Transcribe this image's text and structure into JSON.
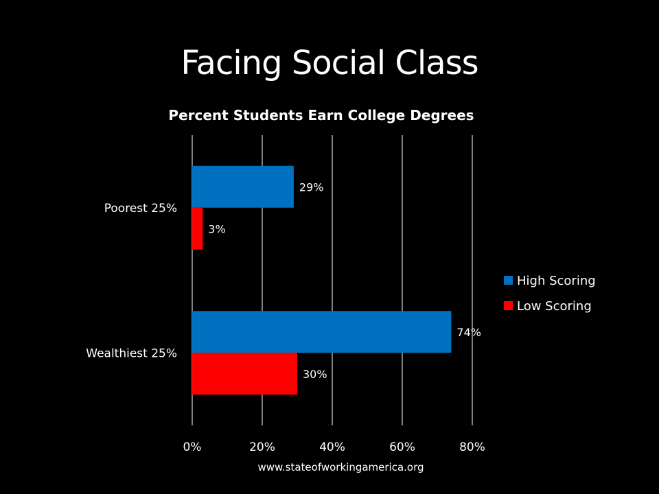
{
  "slide": {
    "title": "Facing Social Class",
    "source": "www.stateofworkingamerica.org"
  },
  "chart_data": {
    "type": "bar",
    "orientation": "horizontal",
    "title": "Percent Students Earn College Degrees",
    "categories": [
      "Poorest 25%",
      "Wealthiest 25%"
    ],
    "series": [
      {
        "name": "High Scoring",
        "values": [
          29,
          74
        ],
        "labels": [
          "29%",
          "74%"
        ],
        "color": "#0070C0"
      },
      {
        "name": "Low Scoring",
        "values": [
          3,
          30
        ],
        "labels": [
          "3%",
          "30%"
        ],
        "color": "#FF0000"
      }
    ],
    "xlim": [
      0,
      80
    ],
    "xticks": [
      0,
      20,
      40,
      60,
      80
    ],
    "xtick_labels": [
      "0%",
      "20%",
      "40%",
      "60%",
      "80%"
    ],
    "grid": true,
    "legend_position": "right",
    "background": "#000000"
  }
}
